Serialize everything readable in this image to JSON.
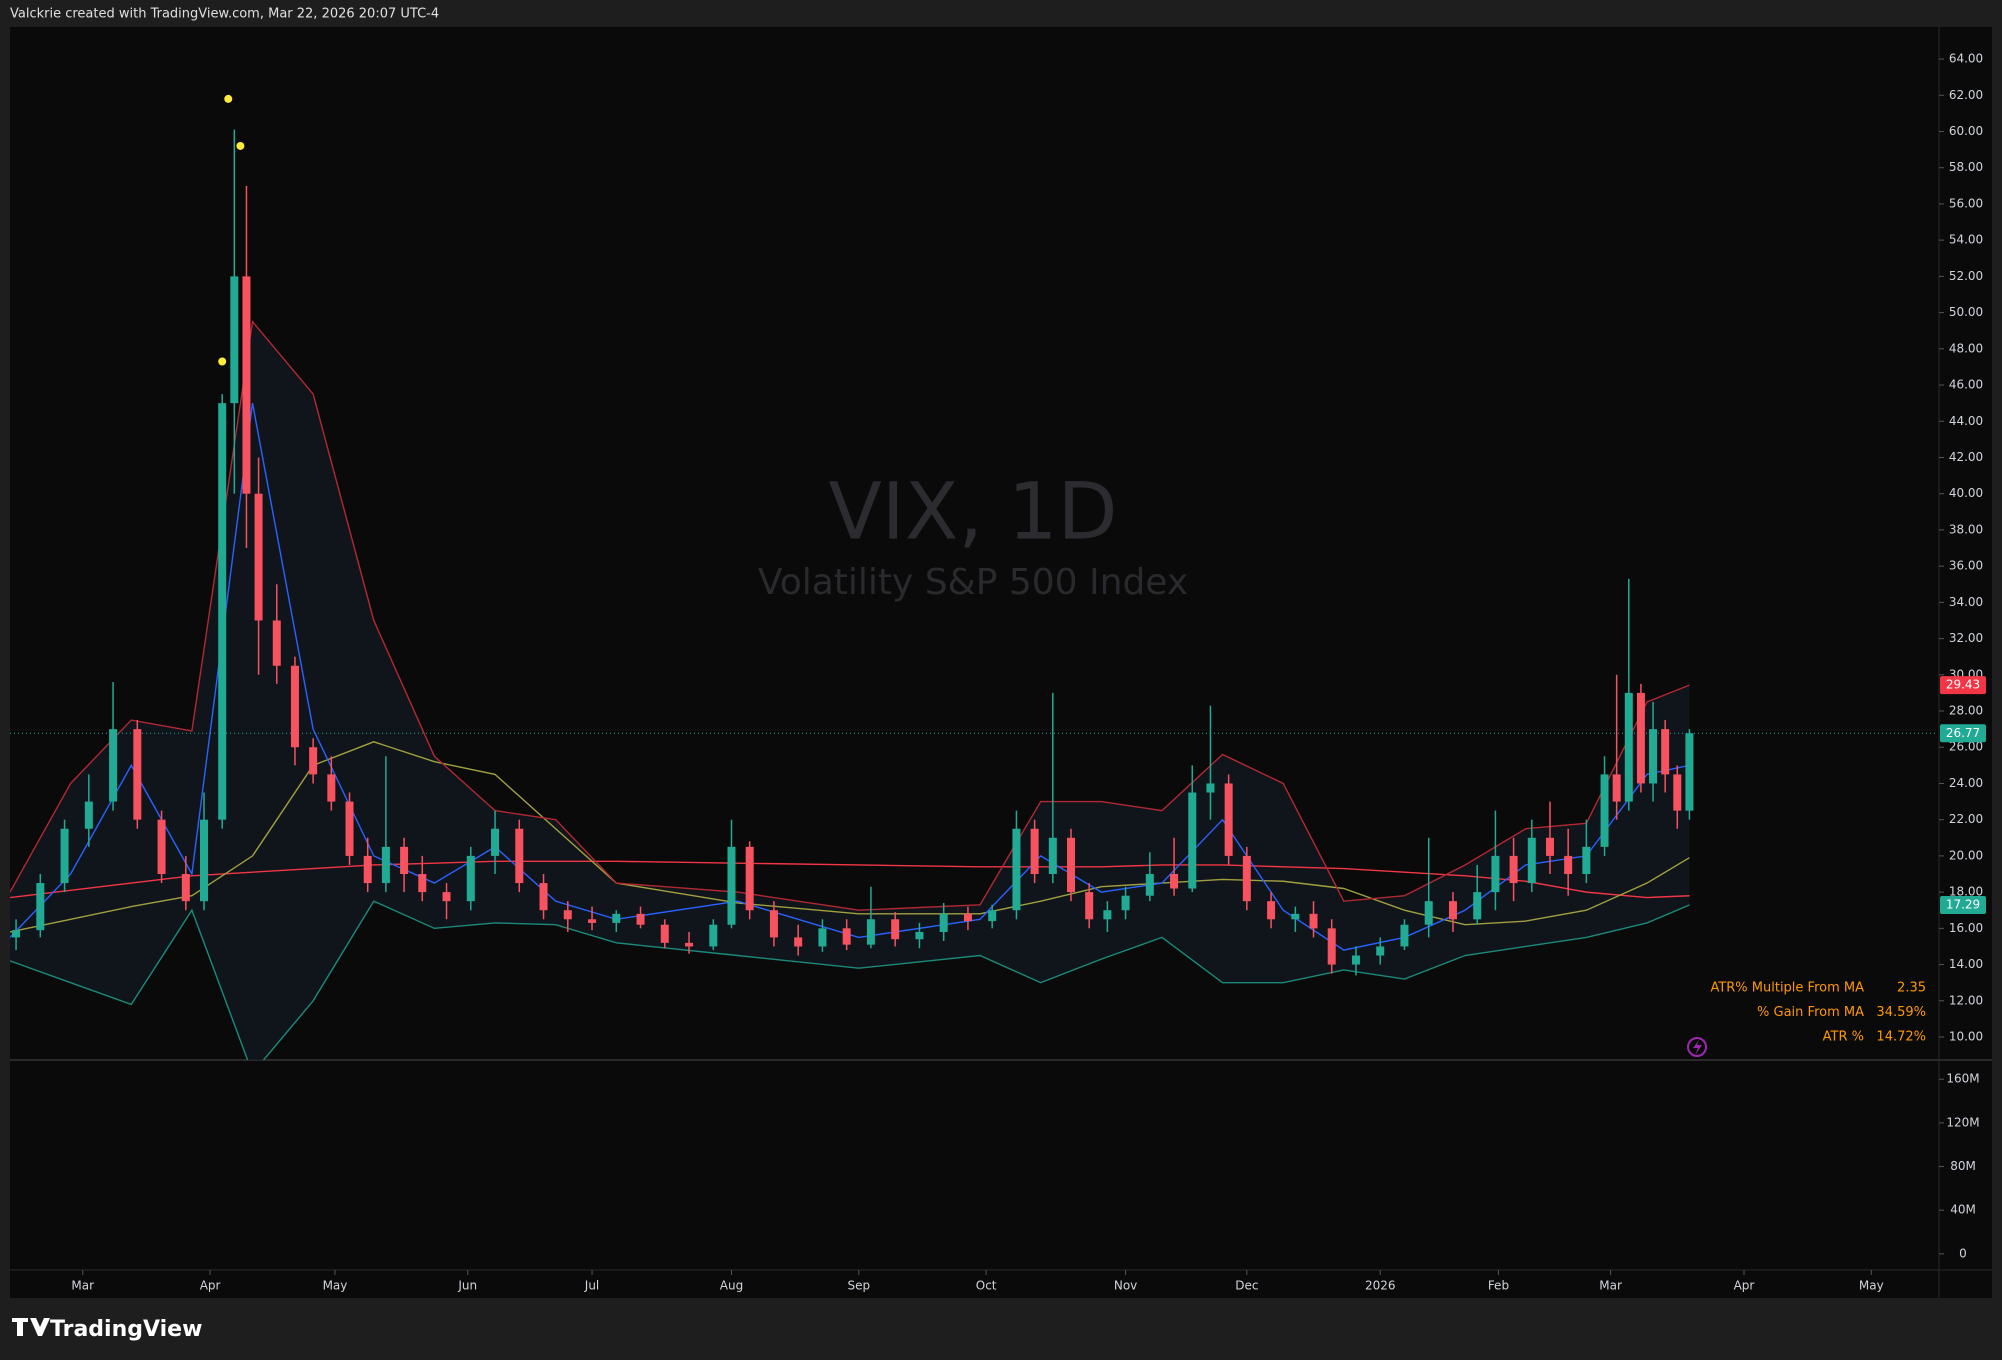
{
  "header": "Valckrie created with TradingView.com, Mar 22, 2026 20:07 UTC-4",
  "brand": "TradingView",
  "chart_data": {
    "type": "candlestick",
    "title": "VIX, 1D",
    "subtitle": "Volatility S&P 500 Index",
    "up_color": "#22ab94",
    "down_color": "#f7525f",
    "grid": false,
    "xlim": [
      0,
      318
    ],
    "xticks": [
      {
        "value": 12,
        "label": "Mar"
      },
      {
        "value": 33,
        "label": "Apr"
      },
      {
        "value": 53.6,
        "label": "May"
      },
      {
        "value": 75.5,
        "label": "Jun"
      },
      {
        "value": 96,
        "label": "Jul"
      },
      {
        "value": 119,
        "label": "Aug"
      },
      {
        "value": 140,
        "label": "Sep"
      },
      {
        "value": 161,
        "label": "Oct"
      },
      {
        "value": 184,
        "label": "Nov"
      },
      {
        "value": 204,
        "label": "Dec"
      },
      {
        "value": 226,
        "label": "2026"
      },
      {
        "value": 245.5,
        "label": "Feb"
      },
      {
        "value": 264,
        "label": "Mar"
      },
      {
        "value": 286,
        "label": "Apr"
      },
      {
        "value": 307,
        "label": "May"
      }
    ],
    "ylim": [
      8.73,
      65.77
    ],
    "yticks": [
      {
        "value": 10,
        "label": "10.00"
      },
      {
        "value": 12,
        "label": "12.00"
      },
      {
        "value": 14,
        "label": "14.00"
      },
      {
        "value": 16,
        "label": "16.00"
      },
      {
        "value": 18,
        "label": "18.00"
      },
      {
        "value": 20,
        "label": "20.00"
      },
      {
        "value": 22,
        "label": "22.00"
      },
      {
        "value": 24,
        "label": "24.00"
      },
      {
        "value": 26,
        "label": "26.00"
      },
      {
        "value": 28,
        "label": "28.00"
      },
      {
        "value": 30,
        "label": "30.00"
      },
      {
        "value": 32,
        "label": "32.00"
      },
      {
        "value": 34,
        "label": "34.00"
      },
      {
        "value": 36,
        "label": "36.00"
      },
      {
        "value": 38,
        "label": "38.00"
      },
      {
        "value": 40,
        "label": "40.00"
      },
      {
        "value": 42,
        "label": "42.00"
      },
      {
        "value": 44,
        "label": "44.00"
      },
      {
        "value": 46,
        "label": "46.00"
      },
      {
        "value": 48,
        "label": "48.00"
      },
      {
        "value": 50,
        "label": "50.00"
      },
      {
        "value": 52,
        "label": "52.00"
      },
      {
        "value": 54,
        "label": "54.00"
      },
      {
        "value": 56,
        "label": "56.00"
      },
      {
        "value": 58,
        "label": "58.00"
      },
      {
        "value": 60,
        "label": "60.00"
      },
      {
        "value": 62,
        "label": "62.00"
      },
      {
        "value": 64,
        "label": "64.00"
      }
    ],
    "volume_ylim": [
      -14800000,
      177600000
    ],
    "volume_ticks": [
      0,
      {
        "value": 40000000,
        "label": "40M"
      },
      {
        "value": 80000000,
        "label": "80M"
      },
      {
        "value": 120000000,
        "label": "120M"
      },
      {
        "value": 160000000,
        "label": "160M"
      }
    ],
    "candles": {
      "x": [
        1,
        5,
        9,
        13,
        17,
        21,
        25,
        29,
        32,
        35,
        37,
        39,
        41,
        44,
        47,
        50,
        53,
        56,
        59,
        62,
        65,
        68,
        72,
        76,
        80,
        84,
        88,
        92,
        96,
        100,
        104,
        108,
        112,
        116,
        119,
        122,
        126,
        130,
        134,
        138,
        142,
        146,
        150,
        154,
        158,
        162,
        166,
        169,
        172,
        175,
        178,
        181,
        184,
        188,
        192,
        195,
        198,
        201,
        204,
        208,
        212,
        215,
        218,
        222,
        226,
        230,
        234,
        238,
        242,
        245,
        248,
        251,
        254,
        257,
        260,
        263,
        265,
        267,
        269,
        271,
        273,
        275,
        277
      ],
      "open": [
        15.5,
        15.9,
        18.5,
        21.5,
        23.0,
        27.0,
        22.0,
        19.0,
        17.5,
        22.0,
        45.0,
        52.0,
        40.0,
        33.0,
        30.5,
        26.0,
        24.5,
        23.0,
        20.0,
        18.5,
        20.5,
        19.0,
        18.0,
        17.5,
        20.0,
        21.5,
        18.5,
        17.0,
        16.5,
        16.3,
        16.8,
        16.2,
        15.2,
        15.0,
        16.2,
        20.5,
        17.0,
        15.5,
        15.0,
        16.0,
        15.1,
        16.5,
        15.4,
        15.8,
        16.8,
        16.4,
        17.0,
        21.5,
        19.0,
        21.0,
        18.0,
        16.5,
        17.0,
        17.8,
        19.0,
        18.2,
        23.5,
        24.0,
        20.0,
        17.5,
        16.5,
        16.8,
        16.0,
        14.0,
        14.5,
        15.0,
        16.2,
        17.5,
        16.5,
        18.0,
        20.0,
        18.5,
        21.0,
        20.0,
        19.0,
        20.5,
        24.5,
        23.0,
        29.0,
        24.0,
        27.0,
        24.5,
        22.5
      ],
      "high": [
        16.5,
        19.0,
        22.0,
        24.5,
        29.6,
        27.5,
        22.5,
        20.0,
        23.5,
        45.5,
        60.1,
        57.0,
        42.0,
        35.0,
        31.0,
        26.5,
        25.5,
        23.5,
        21.0,
        25.5,
        21.0,
        20.0,
        18.5,
        20.5,
        22.5,
        22.0,
        19.0,
        17.5,
        17.2,
        17.0,
        17.2,
        16.5,
        15.8,
        16.5,
        22.0,
        20.8,
        17.5,
        16.2,
        16.5,
        16.5,
        18.3,
        16.9,
        16.3,
        17.4,
        17.2,
        17.3,
        22.5,
        22.0,
        29.0,
        21.5,
        18.5,
        17.5,
        18.3,
        20.2,
        21.0,
        25.0,
        28.3,
        24.5,
        20.5,
        18.0,
        17.2,
        17.5,
        16.5,
        15.0,
        15.5,
        16.5,
        21.0,
        18.0,
        19.5,
        22.5,
        21.0,
        22.0,
        23.0,
        21.5,
        22.0,
        25.5,
        30.0,
        35.3,
        29.5,
        28.5,
        27.5,
        25.0,
        27.0
      ],
      "low": [
        14.8,
        15.5,
        18.0,
        20.5,
        22.5,
        21.5,
        18.5,
        17.0,
        17.0,
        21.5,
        40.0,
        37.0,
        30.0,
        29.5,
        25.0,
        24.0,
        22.5,
        19.5,
        18.0,
        18.0,
        18.0,
        17.5,
        16.5,
        17.0,
        19.0,
        18.0,
        16.5,
        15.8,
        15.9,
        15.8,
        16.0,
        14.9,
        14.6,
        14.8,
        16.0,
        16.5,
        15.0,
        14.5,
        14.7,
        14.8,
        14.9,
        15.0,
        14.9,
        15.3,
        15.9,
        16.0,
        16.5,
        18.5,
        18.5,
        17.5,
        16.0,
        15.8,
        16.5,
        17.5,
        17.8,
        18.0,
        22.0,
        19.5,
        17.0,
        16.0,
        15.8,
        15.5,
        13.5,
        13.4,
        14.0,
        14.8,
        15.5,
        15.8,
        16.2,
        17.0,
        17.5,
        18.0,
        19.0,
        17.8,
        18.5,
        20.0,
        22.0,
        22.5,
        23.5,
        23.0,
        23.5,
        21.5,
        22.0
      ],
      "close": [
        15.9,
        18.5,
        21.5,
        23.0,
        27.0,
        22.0,
        19.0,
        17.5,
        22.0,
        45.0,
        52.0,
        40.0,
        33.0,
        30.5,
        26.0,
        24.5,
        23.0,
        20.0,
        18.5,
        20.5,
        19.0,
        18.0,
        17.5,
        20.0,
        21.5,
        18.5,
        17.0,
        16.5,
        16.3,
        16.8,
        16.2,
        15.2,
        15.0,
        16.2,
        20.5,
        17.0,
        15.5,
        15.0,
        16.0,
        15.1,
        16.5,
        15.4,
        15.8,
        16.8,
        16.4,
        17.0,
        21.5,
        19.0,
        21.0,
        18.0,
        16.5,
        17.0,
        17.8,
        19.0,
        18.2,
        23.5,
        24.0,
        20.0,
        17.5,
        16.5,
        16.8,
        16.0,
        14.0,
        14.5,
        15.0,
        16.2,
        17.5,
        16.5,
        18.0,
        20.0,
        18.5,
        21.0,
        20.0,
        19.0,
        20.5,
        24.5,
        23.0,
        29.0,
        24.0,
        27.0,
        24.5,
        22.5,
        26.77
      ]
    },
    "overlay_x": [
      0,
      10,
      20,
      30,
      40,
      50,
      60,
      70,
      80,
      90,
      100,
      120,
      140,
      160,
      170,
      180,
      190,
      200,
      210,
      220,
      230,
      240,
      250,
      260,
      270,
      277
    ],
    "overlays": [
      {
        "color": "#f23645",
        "values": [
          17.7,
          18.1,
          18.5,
          18.9,
          19.1,
          19.3,
          19.5,
          19.6,
          19.7,
          19.7,
          19.7,
          19.6,
          19.5,
          19.4,
          19.4,
          19.4,
          19.5,
          19.5,
          19.4,
          19.3,
          19.1,
          18.9,
          18.6,
          18.0,
          17.7,
          17.8
        ]
      },
      {
        "color": "#a0a040",
        "values": [
          15.8,
          16.5,
          17.2,
          17.8,
          20.0,
          25.0,
          26.3,
          25.2,
          24.5,
          21.5,
          18.5,
          17.4,
          16.8,
          16.8,
          17.5,
          18.3,
          18.5,
          18.7,
          18.6,
          18.2,
          17.0,
          16.2,
          16.4,
          17.0,
          18.5,
          19.9
        ]
      },
      {
        "color": "#2962ff",
        "values": [
          15.5,
          19.0,
          25.0,
          19.0,
          45.0,
          27.0,
          20.0,
          18.5,
          20.5,
          17.5,
          16.5,
          17.5,
          15.5,
          16.5,
          20.0,
          18.0,
          18.5,
          22.0,
          17.0,
          14.8,
          15.5,
          17.0,
          19.5,
          20.0,
          24.5,
          25.0
        ]
      },
      {
        "color": "#b22833",
        "values": [
          18.0,
          24.0,
          27.5,
          26.9,
          49.5,
          45.5,
          33.0,
          25.5,
          22.5,
          22.0,
          18.5,
          18.0,
          17.0,
          17.3,
          23.0,
          23.0,
          22.5,
          25.6,
          24.0,
          17.5,
          17.8,
          19.5,
          21.5,
          21.8,
          28.5,
          29.43
        ]
      },
      {
        "color": "#1b8a7a",
        "values": [
          14.2,
          13.0,
          11.8,
          17.0,
          8.0,
          12.0,
          17.5,
          16.0,
          16.3,
          16.2,
          15.2,
          14.5,
          13.8,
          14.5,
          13.0,
          14.3,
          15.5,
          13.0,
          13.0,
          13.7,
          13.2,
          14.5,
          15.0,
          15.5,
          16.3,
          17.29
        ]
      }
    ],
    "markers": {
      "color": "#ffeb3b",
      "x": [
        35,
        36,
        38
      ],
      "values": [
        47.3,
        61.8,
        59.2
      ]
    },
    "last_price": 26.77,
    "price_labels": [
      {
        "value": 29.43,
        "color": "#f23645"
      },
      {
        "value": 26.77,
        "color": "#22ab94"
      },
      {
        "value": 17.29,
        "color": "#22ab94"
      }
    ],
    "table": [
      [
        "ATR% Multiple From MA",
        "2.35"
      ],
      [
        "% Gain From MA",
        "34.59%"
      ],
      [
        "ATR %",
        "14.72%"
      ]
    ]
  }
}
